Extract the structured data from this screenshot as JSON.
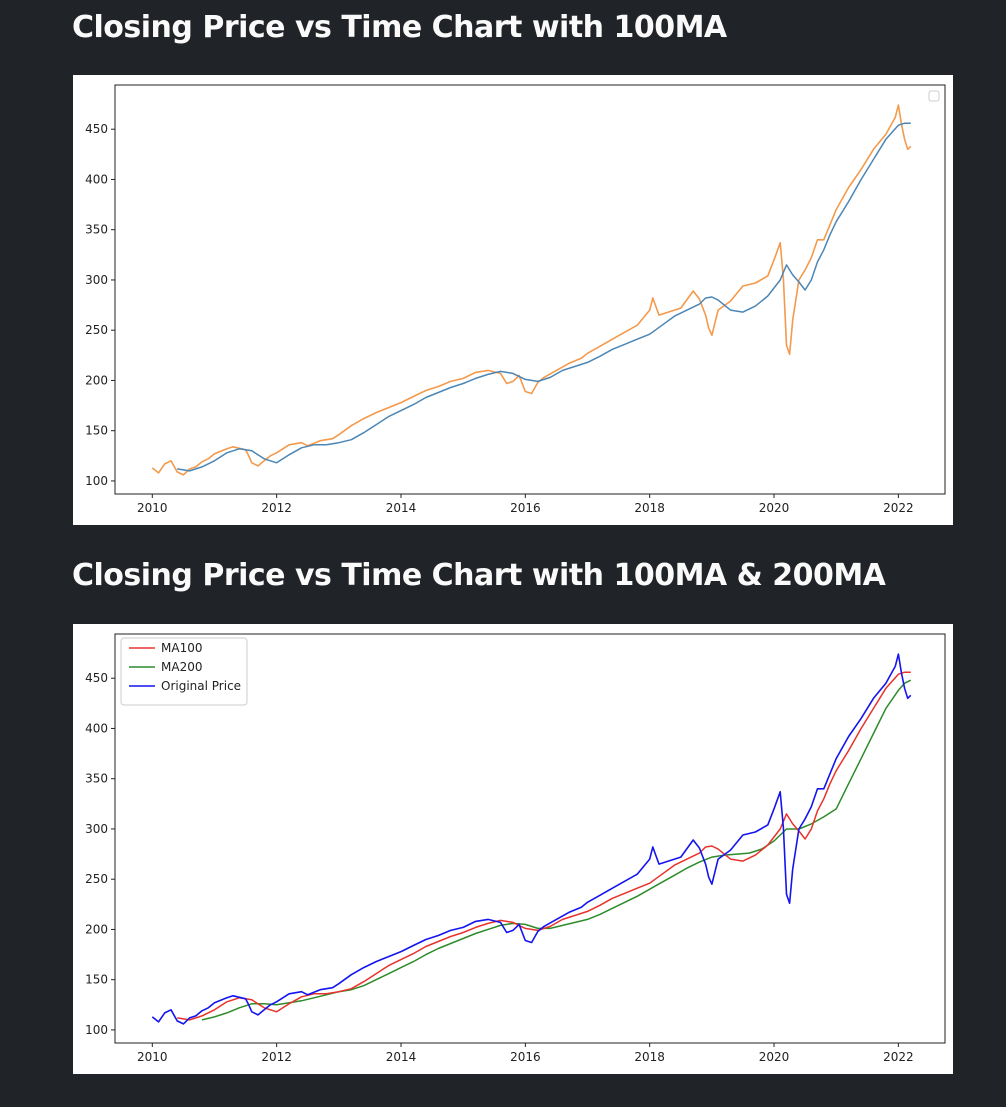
{
  "page": {
    "title1": "Closing Price vs Time Chart with 100MA",
    "title2": "Closing Price vs Time Chart with 100MA & 200MA"
  },
  "colors": {
    "background": "#202327",
    "orange": "#f39a4c",
    "steelblue": "#4c86b5",
    "red": "#e8332b",
    "green": "#2e8b2b",
    "blue": "#1414f0"
  },
  "chart_data": [
    {
      "type": "line",
      "title": "",
      "xlabel": "",
      "ylabel": "",
      "xlim": [
        2009.4,
        2022.75
      ],
      "ylim": [
        87,
        494
      ],
      "xticks": [
        2010,
        2012,
        2014,
        2016,
        2018,
        2020,
        2022
      ],
      "xtick_labels": [
        "2010",
        "2012",
        "2014",
        "2016",
        "2018",
        "2020",
        "2022"
      ],
      "yticks": [
        100,
        150,
        200,
        250,
        300,
        350,
        400,
        450
      ],
      "ytick_labels": [
        "100",
        "150",
        "200",
        "250",
        "300",
        "350",
        "400",
        "450"
      ],
      "grid": false,
      "legend": "empty box, top-right",
      "series": [
        {
          "color": "#f39a4c",
          "x": [
            2010.0,
            2010.1,
            2010.2,
            2010.3,
            2010.4,
            2010.5,
            2010.6,
            2010.7,
            2010.8,
            2010.9,
            2011.0,
            2011.2,
            2011.3,
            2011.5,
            2011.55,
            2011.6,
            2011.7,
            2011.8,
            2011.9,
            2012.0,
            2012.2,
            2012.4,
            2012.5,
            2012.7,
            2012.9,
            2013.0,
            2013.2,
            2013.4,
            2013.6,
            2013.8,
            2014.0,
            2014.2,
            2014.4,
            2014.6,
            2014.8,
            2015.0,
            2015.2,
            2015.4,
            2015.6,
            2015.7,
            2015.8,
            2015.9,
            2016.0,
            2016.1,
            2016.2,
            2016.3,
            2016.5,
            2016.7,
            2016.9,
            2017.0,
            2017.2,
            2017.4,
            2017.6,
            2017.8,
            2018.0,
            2018.05,
            2018.15,
            2018.3,
            2018.5,
            2018.7,
            2018.8,
            2018.9,
            2018.95,
            2019.0,
            2019.1,
            2019.3,
            2019.5,
            2019.7,
            2019.9,
            2020.0,
            2020.1,
            2020.15,
            2020.2,
            2020.25,
            2020.3,
            2020.4,
            2020.5,
            2020.6,
            2020.7,
            2020.8,
            2020.9,
            2021.0,
            2021.2,
            2021.4,
            2021.6,
            2021.8,
            2021.95,
            2022.0,
            2022.05,
            2022.1,
            2022.15,
            2022.2
          ],
          "y": [
            113,
            108,
            117,
            120,
            109,
            106,
            112,
            114,
            119,
            122,
            127,
            132,
            134,
            131,
            125,
            118,
            115,
            120,
            125,
            128,
            136,
            138,
            135,
            140,
            142,
            146,
            155,
            162,
            168,
            173,
            178,
            184,
            190,
            194,
            199,
            202,
            208,
            210,
            207,
            197,
            199,
            205,
            189,
            187,
            198,
            203,
            210,
            217,
            222,
            227,
            234,
            241,
            248,
            255,
            270,
            282,
            265,
            268,
            272,
            289,
            281,
            265,
            252,
            245,
            270,
            279,
            294,
            297,
            304,
            320,
            337,
            301,
            235,
            226,
            260,
            300,
            310,
            322,
            340,
            340,
            355,
            370,
            392,
            410,
            430,
            445,
            462,
            474,
            455,
            440,
            430,
            433
          ]
        },
        {
          "color": "#4c86b5",
          "x": [
            2010.4,
            2010.6,
            2010.8,
            2011.0,
            2011.2,
            2011.4,
            2011.6,
            2011.8,
            2012.0,
            2012.2,
            2012.4,
            2012.6,
            2012.8,
            2013.0,
            2013.2,
            2013.4,
            2013.6,
            2013.8,
            2014.0,
            2014.2,
            2014.4,
            2014.6,
            2014.8,
            2015.0,
            2015.2,
            2015.4,
            2015.6,
            2015.8,
            2016.0,
            2016.2,
            2016.4,
            2016.6,
            2016.8,
            2017.0,
            2017.2,
            2017.4,
            2017.6,
            2017.8,
            2018.0,
            2018.2,
            2018.4,
            2018.6,
            2018.8,
            2018.9,
            2019.0,
            2019.1,
            2019.2,
            2019.3,
            2019.5,
            2019.7,
            2019.9,
            2020.0,
            2020.1,
            2020.2,
            2020.3,
            2020.4,
            2020.5,
            2020.6,
            2020.7,
            2020.8,
            2020.9,
            2021.0,
            2021.2,
            2021.4,
            2021.6,
            2021.8,
            2022.0,
            2022.1,
            2022.2
          ],
          "y": [
            112,
            110,
            114,
            120,
            128,
            132,
            130,
            122,
            118,
            126,
            133,
            136,
            136,
            138,
            141,
            148,
            156,
            164,
            170,
            176,
            183,
            188,
            193,
            197,
            202,
            206,
            209,
            207,
            201,
            199,
            203,
            210,
            214,
            218,
            224,
            231,
            236,
            241,
            246,
            255,
            264,
            270,
            276,
            282,
            283,
            280,
            275,
            270,
            268,
            274,
            284,
            292,
            300,
            315,
            305,
            298,
            290,
            300,
            318,
            330,
            345,
            358,
            378,
            400,
            420,
            440,
            454,
            456,
            456
          ]
        }
      ]
    },
    {
      "type": "line",
      "title": "",
      "xlabel": "",
      "ylabel": "",
      "xlim": [
        2009.4,
        2022.75
      ],
      "ylim": [
        87,
        494
      ],
      "xticks": [
        2010,
        2012,
        2014,
        2016,
        2018,
        2020,
        2022
      ],
      "xtick_labels": [
        "2010",
        "2012",
        "2014",
        "2016",
        "2018",
        "2020",
        "2022"
      ],
      "yticks": [
        100,
        150,
        200,
        250,
        300,
        350,
        400,
        450
      ],
      "ytick_labels": [
        "100",
        "150",
        "200",
        "250",
        "300",
        "350",
        "400",
        "450"
      ],
      "grid": false,
      "legend": "upper-left",
      "series": [
        {
          "name": "MA200",
          "color": "#2e8b2b",
          "x": [
            2010.8,
            2011.0,
            2011.2,
            2011.4,
            2011.6,
            2011.8,
            2012.0,
            2012.2,
            2012.4,
            2012.6,
            2012.8,
            2013.0,
            2013.2,
            2013.4,
            2013.6,
            2013.8,
            2014.0,
            2014.2,
            2014.4,
            2014.6,
            2014.8,
            2015.0,
            2015.2,
            2015.4,
            2015.6,
            2015.8,
            2016.0,
            2016.2,
            2016.4,
            2016.6,
            2016.8,
            2017.0,
            2017.2,
            2017.4,
            2017.6,
            2017.8,
            2018.0,
            2018.2,
            2018.4,
            2018.6,
            2018.8,
            2019.0,
            2019.2,
            2019.4,
            2019.6,
            2019.8,
            2020.0,
            2020.2,
            2020.4,
            2020.6,
            2020.8,
            2021.0,
            2021.2,
            2021.4,
            2021.6,
            2021.8,
            2022.0,
            2022.1,
            2022.2
          ],
          "y": [
            110,
            113,
            117,
            122,
            126,
            126,
            125,
            127,
            129,
            132,
            135,
            138,
            140,
            144,
            150,
            156,
            162,
            168,
            175,
            181,
            186,
            191,
            196,
            200,
            204,
            206,
            205,
            201,
            201,
            204,
            207,
            210,
            215,
            221,
            227,
            233,
            240,
            247,
            254,
            261,
            267,
            272,
            274,
            275,
            276,
            280,
            288,
            300,
            300,
            305,
            312,
            320,
            345,
            370,
            395,
            420,
            438,
            445,
            448
          ]
        },
        {
          "name": "MA100",
          "color": "#e8332b",
          "x": [
            2010.4,
            2010.6,
            2010.8,
            2011.0,
            2011.2,
            2011.4,
            2011.6,
            2011.8,
            2012.0,
            2012.2,
            2012.4,
            2012.6,
            2012.8,
            2013.0,
            2013.2,
            2013.4,
            2013.6,
            2013.8,
            2014.0,
            2014.2,
            2014.4,
            2014.6,
            2014.8,
            2015.0,
            2015.2,
            2015.4,
            2015.6,
            2015.8,
            2016.0,
            2016.2,
            2016.4,
            2016.6,
            2016.8,
            2017.0,
            2017.2,
            2017.4,
            2017.6,
            2017.8,
            2018.0,
            2018.2,
            2018.4,
            2018.6,
            2018.8,
            2018.9,
            2019.0,
            2019.1,
            2019.2,
            2019.3,
            2019.5,
            2019.7,
            2019.9,
            2020.0,
            2020.1,
            2020.2,
            2020.3,
            2020.4,
            2020.5,
            2020.6,
            2020.7,
            2020.8,
            2020.9,
            2021.0,
            2021.2,
            2021.4,
            2021.6,
            2021.8,
            2022.0,
            2022.1,
            2022.2
          ],
          "y": [
            112,
            110,
            114,
            120,
            128,
            132,
            130,
            122,
            118,
            126,
            133,
            136,
            136,
            138,
            141,
            148,
            156,
            164,
            170,
            176,
            183,
            188,
            193,
            197,
            202,
            206,
            209,
            207,
            201,
            199,
            203,
            210,
            214,
            218,
            224,
            231,
            236,
            241,
            246,
            255,
            264,
            270,
            276,
            282,
            283,
            280,
            275,
            270,
            268,
            274,
            284,
            292,
            300,
            315,
            305,
            298,
            290,
            300,
            318,
            330,
            345,
            358,
            378,
            400,
            420,
            440,
            454,
            456,
            456
          ]
        },
        {
          "name": "Original Price",
          "color": "#1414f0",
          "x": [
            2010.0,
            2010.1,
            2010.2,
            2010.3,
            2010.4,
            2010.5,
            2010.6,
            2010.7,
            2010.8,
            2010.9,
            2011.0,
            2011.2,
            2011.3,
            2011.5,
            2011.55,
            2011.6,
            2011.7,
            2011.8,
            2011.9,
            2012.0,
            2012.2,
            2012.4,
            2012.5,
            2012.7,
            2012.9,
            2013.0,
            2013.2,
            2013.4,
            2013.6,
            2013.8,
            2014.0,
            2014.2,
            2014.4,
            2014.6,
            2014.8,
            2015.0,
            2015.2,
            2015.4,
            2015.6,
            2015.7,
            2015.8,
            2015.9,
            2016.0,
            2016.1,
            2016.2,
            2016.3,
            2016.5,
            2016.7,
            2016.9,
            2017.0,
            2017.2,
            2017.4,
            2017.6,
            2017.8,
            2018.0,
            2018.05,
            2018.15,
            2018.3,
            2018.5,
            2018.7,
            2018.8,
            2018.9,
            2018.95,
            2019.0,
            2019.1,
            2019.3,
            2019.5,
            2019.7,
            2019.9,
            2020.0,
            2020.1,
            2020.15,
            2020.2,
            2020.25,
            2020.3,
            2020.4,
            2020.5,
            2020.6,
            2020.7,
            2020.8,
            2020.9,
            2021.0,
            2021.2,
            2021.4,
            2021.6,
            2021.8,
            2021.95,
            2022.0,
            2022.05,
            2022.1,
            2022.15,
            2022.2
          ],
          "y": [
            113,
            108,
            117,
            120,
            109,
            106,
            112,
            114,
            119,
            122,
            127,
            132,
            134,
            131,
            125,
            118,
            115,
            120,
            125,
            128,
            136,
            138,
            135,
            140,
            142,
            146,
            155,
            162,
            168,
            173,
            178,
            184,
            190,
            194,
            199,
            202,
            208,
            210,
            207,
            197,
            199,
            205,
            189,
            187,
            198,
            203,
            210,
            217,
            222,
            227,
            234,
            241,
            248,
            255,
            270,
            282,
            265,
            268,
            272,
            289,
            281,
            265,
            252,
            245,
            270,
            279,
            294,
            297,
            304,
            320,
            337,
            301,
            235,
            226,
            260,
            300,
            310,
            322,
            340,
            340,
            355,
            370,
            392,
            410,
            430,
            445,
            462,
            474,
            455,
            440,
            430,
            433
          ]
        }
      ],
      "legend_entries": [
        {
          "label": "MA100",
          "color": "#e8332b"
        },
        {
          "label": "MA200",
          "color": "#2e8b2b"
        },
        {
          "label": "Original Price",
          "color": "#1414f0"
        }
      ]
    }
  ]
}
